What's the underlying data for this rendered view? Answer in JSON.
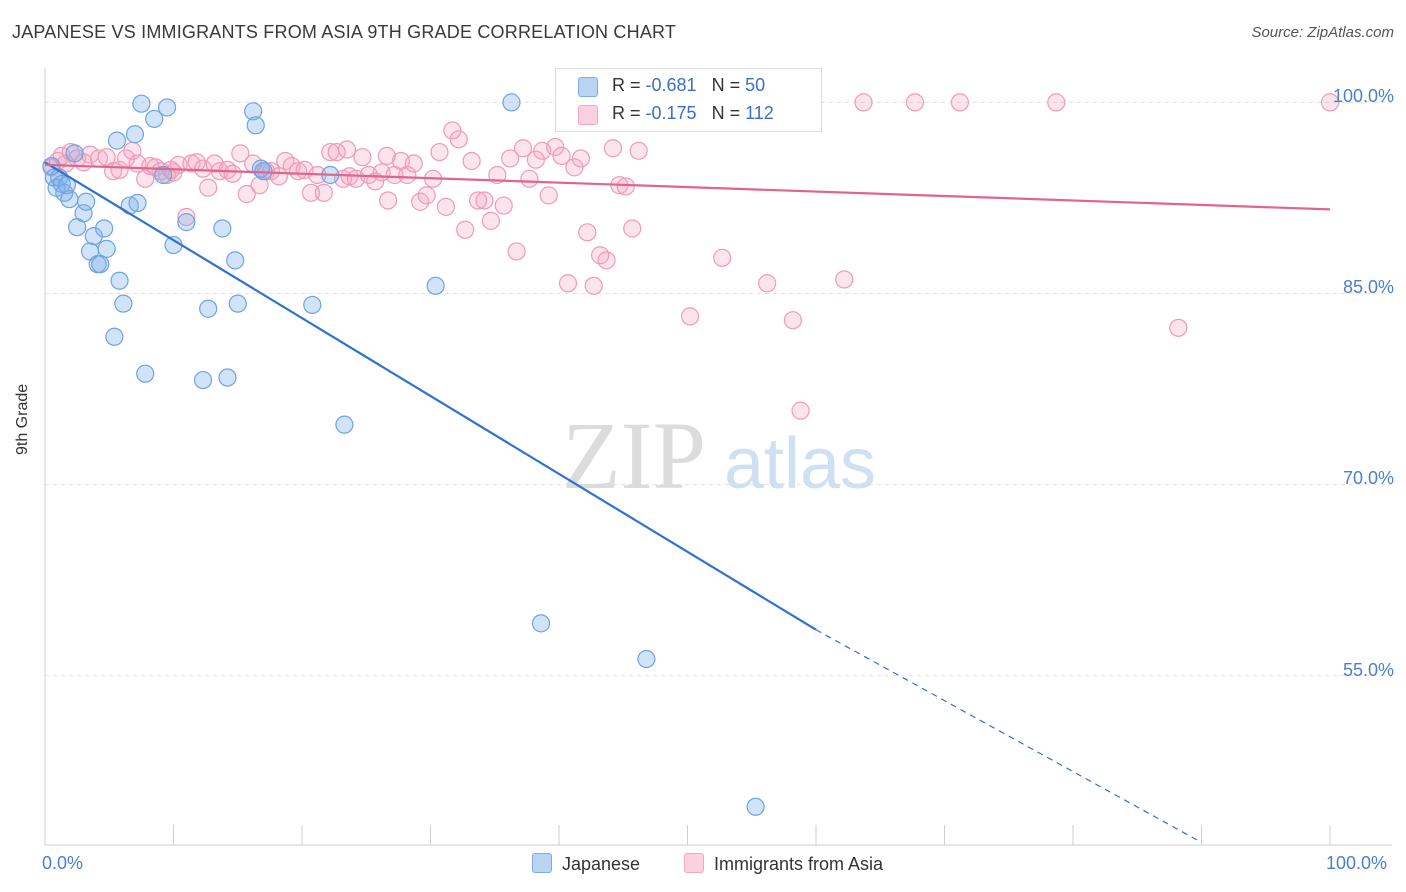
{
  "title": "JAPANESE VS IMMIGRANTS FROM ASIA 9TH GRADE CORRELATION CHART",
  "source": "Source: ZipAtlas.com",
  "watermark": {
    "zip": "ZIP",
    "atlas": "atlas"
  },
  "legend": {
    "rows": [
      {
        "r_label": "R = ",
        "r_value": "-0.681",
        "n_label": "N = ",
        "n_value": "50"
      },
      {
        "r_label": "R = ",
        "r_value": "-0.175",
        "n_label": "N = ",
        "n_value": "112"
      }
    ]
  },
  "bottom_legend": [
    "Japanese",
    "Immigrants from Asia"
  ],
  "chart_data": {
    "type": "scatter",
    "title": "JAPANESE VS IMMIGRANTS FROM ASIA 9TH GRADE CORRELATION CHART",
    "xlabel": "",
    "ylabel": "9th Grade",
    "xlim": [
      0,
      100
    ],
    "ylim": [
      41.7,
      102.7
    ],
    "y_ticks": [
      {
        "value": 100,
        "label": "100.0%"
      },
      {
        "value": 85,
        "label": "85.0%"
      },
      {
        "value": 70,
        "label": "70.0%"
      },
      {
        "value": 55,
        "label": "55.0%"
      }
    ],
    "x_tick_labels": [
      {
        "value": 0,
        "label": "0.0%"
      },
      {
        "value": 100,
        "label": "100.0%"
      }
    ],
    "grid": true,
    "legend_position": "top-center",
    "series": [
      {
        "name": "Japanese",
        "color": "#7baee8",
        "line_color": "#2f72d0",
        "r": -0.681,
        "n": 50,
        "trend": {
          "x0": 0,
          "y0": 95.3,
          "x1": 60,
          "y1": 58.6,
          "dash_to_x": 90,
          "dash_to_y": 41.9
        },
        "points": [
          [
            0.5,
            95.0
          ],
          [
            0.7,
            94.1
          ],
          [
            0.9,
            93.3
          ],
          [
            1.1,
            94.1
          ],
          [
            1.3,
            93.6
          ],
          [
            1.5,
            92.9
          ],
          [
            1.7,
            93.5
          ],
          [
            1.9,
            92.4
          ],
          [
            2.3,
            96.0
          ],
          [
            2.5,
            90.2
          ],
          [
            3.0,
            91.3
          ],
          [
            3.2,
            92.2
          ],
          [
            3.5,
            88.3
          ],
          [
            3.8,
            89.5
          ],
          [
            4.1,
            87.3
          ],
          [
            4.3,
            87.3
          ],
          [
            4.6,
            90.1
          ],
          [
            4.8,
            88.5
          ],
          [
            5.4,
            81.6
          ],
          [
            5.6,
            97.0
          ],
          [
            5.8,
            86.0
          ],
          [
            6.1,
            84.2
          ],
          [
            6.6,
            91.9
          ],
          [
            7.0,
            97.5
          ],
          [
            7.2,
            92.1
          ],
          [
            7.5,
            99.9
          ],
          [
            7.8,
            78.7
          ],
          [
            8.5,
            98.7
          ],
          [
            9.2,
            94.3
          ],
          [
            9.5,
            99.6
          ],
          [
            10.0,
            88.8
          ],
          [
            11.0,
            90.6
          ],
          [
            12.3,
            78.2
          ],
          [
            12.7,
            83.8
          ],
          [
            13.8,
            90.1
          ],
          [
            14.2,
            78.4
          ],
          [
            14.8,
            87.6
          ],
          [
            15.0,
            84.2
          ],
          [
            16.2,
            99.3
          ],
          [
            16.4,
            98.2
          ],
          [
            16.8,
            94.8
          ],
          [
            20.8,
            84.1
          ],
          [
            22.2,
            94.3
          ],
          [
            23.3,
            74.7
          ],
          [
            30.4,
            85.6
          ],
          [
            36.3,
            100.0
          ],
          [
            38.6,
            59.1
          ],
          [
            46.8,
            56.3
          ],
          [
            55.3,
            44.7
          ],
          [
            17.0,
            94.6
          ]
        ]
      },
      {
        "name": "Immigrants from Asia",
        "color": "#f4a7c0",
        "line_color": "#e0648e",
        "r": -0.175,
        "n": 112,
        "trend": {
          "x0": 0,
          "y0": 95.1,
          "x1": 100,
          "y1": 91.6
        },
        "points": [
          [
            0.5,
            94.9
          ],
          [
            1.0,
            95.4
          ],
          [
            1.3,
            95.8
          ],
          [
            1.6,
            95.2
          ],
          [
            2.0,
            96.1
          ],
          [
            2.5,
            95.6
          ],
          [
            3.0,
            95.3
          ],
          [
            3.5,
            95.9
          ],
          [
            4.2,
            95.6
          ],
          [
            4.8,
            95.7
          ],
          [
            5.3,
            94.6
          ],
          [
            5.8,
            94.7
          ],
          [
            6.3,
            95.6
          ],
          [
            6.8,
            96.2
          ],
          [
            7.2,
            95.2
          ],
          [
            7.8,
            94.0
          ],
          [
            8.2,
            95.0
          ],
          [
            8.6,
            94.9
          ],
          [
            9.0,
            94.6
          ],
          [
            9.5,
            94.3
          ],
          [
            10.0,
            94.5
          ],
          [
            10.4,
            95.1
          ],
          [
            11.0,
            91.0
          ],
          [
            11.4,
            95.2
          ],
          [
            11.8,
            95.3
          ],
          [
            12.3,
            94.8
          ],
          [
            12.7,
            93.3
          ],
          [
            13.2,
            95.2
          ],
          [
            13.6,
            94.6
          ],
          [
            14.2,
            94.7
          ],
          [
            14.6,
            94.4
          ],
          [
            15.2,
            96.0
          ],
          [
            15.7,
            92.8
          ],
          [
            16.2,
            95.2
          ],
          [
            16.7,
            93.5
          ],
          [
            17.2,
            94.6
          ],
          [
            17.6,
            94.6
          ],
          [
            18.2,
            94.2
          ],
          [
            18.7,
            95.4
          ],
          [
            19.2,
            95.0
          ],
          [
            19.7,
            94.6
          ],
          [
            20.2,
            94.7
          ],
          [
            20.7,
            92.9
          ],
          [
            21.2,
            94.3
          ],
          [
            21.7,
            92.9
          ],
          [
            22.2,
            96.1
          ],
          [
            22.7,
            96.1
          ],
          [
            23.2,
            94.0
          ],
          [
            23.7,
            94.2
          ],
          [
            24.2,
            94.0
          ],
          [
            24.7,
            95.7
          ],
          [
            25.2,
            94.3
          ],
          [
            25.7,
            93.8
          ],
          [
            26.2,
            94.5
          ],
          [
            26.7,
            92.3
          ],
          [
            27.2,
            94.3
          ],
          [
            27.7,
            95.4
          ],
          [
            28.2,
            94.3
          ],
          [
            28.7,
            95.2
          ],
          [
            29.2,
            92.2
          ],
          [
            29.7,
            92.7
          ],
          [
            30.2,
            94.0
          ],
          [
            30.7,
            96.1
          ],
          [
            31.2,
            91.8
          ],
          [
            31.7,
            97.8
          ],
          [
            32.2,
            97.1
          ],
          [
            32.7,
            90.0
          ],
          [
            33.2,
            95.4
          ],
          [
            33.7,
            92.3
          ],
          [
            34.2,
            92.3
          ],
          [
            34.7,
            90.7
          ],
          [
            35.2,
            94.3
          ],
          [
            35.7,
            91.9
          ],
          [
            36.2,
            95.6
          ],
          [
            36.7,
            88.3
          ],
          [
            37.2,
            96.4
          ],
          [
            37.7,
            94.0
          ],
          [
            38.2,
            95.5
          ],
          [
            38.7,
            96.2
          ],
          [
            39.2,
            92.7
          ],
          [
            39.7,
            96.5
          ],
          [
            40.2,
            95.8
          ],
          [
            40.7,
            85.8
          ],
          [
            41.2,
            94.9
          ],
          [
            41.7,
            95.6
          ],
          [
            42.2,
            89.8
          ],
          [
            42.7,
            85.6
          ],
          [
            43.2,
            88.0
          ],
          [
            43.7,
            87.6
          ],
          [
            44.2,
            96.4
          ],
          [
            44.7,
            93.5
          ],
          [
            45.2,
            93.4
          ],
          [
            45.7,
            90.1
          ],
          [
            46.2,
            96.2
          ],
          [
            46.7,
            100.0
          ],
          [
            50.2,
            83.2
          ],
          [
            52.2,
            100.0
          ],
          [
            52.7,
            87.8
          ],
          [
            56.2,
            85.8
          ],
          [
            58.2,
            82.9
          ],
          [
            58.8,
            75.8
          ],
          [
            59.7,
            100.0
          ],
          [
            62.2,
            86.1
          ],
          [
            63.7,
            100.0
          ],
          [
            67.7,
            100.0
          ],
          [
            71.2,
            100.0
          ],
          [
            78.7,
            100.0
          ],
          [
            88.2,
            82.3
          ],
          [
            100.0,
            100.0
          ],
          [
            23.5,
            96.3
          ],
          [
            9.8,
            94.7
          ],
          [
            26.6,
            95.8
          ]
        ]
      }
    ]
  }
}
